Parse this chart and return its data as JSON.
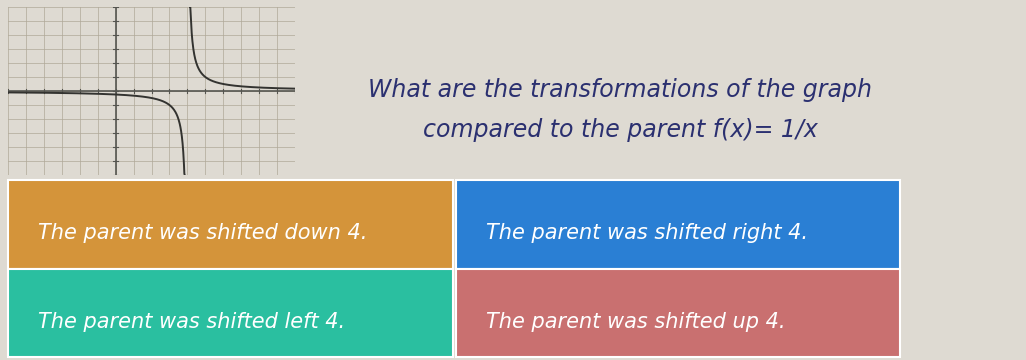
{
  "title_line1": "What are the transformations of the graph",
  "title_line2": "compared to the parent f(x)= 1/x",
  "bg_color": "#dedad2",
  "title_color": "#2b3070",
  "options": [
    {
      "text": "The parent was shifted down 4.",
      "bg": "#d4943a",
      "text_color": "#ffffff",
      "row": 0,
      "col": 0
    },
    {
      "text": "The parent was shifted right 4.",
      "bg": "#2a7fd4",
      "text_color": "#ffffff",
      "row": 0,
      "col": 1
    },
    {
      "text": "The parent was shifted left 4.",
      "bg": "#2abfa0",
      "text_color": "#ffffff",
      "row": 1,
      "col": 0
    },
    {
      "text": "The parent was shifted up 4.",
      "bg": "#c97070",
      "text_color": "#ffffff",
      "row": 1,
      "col": 1
    }
  ],
  "title_fontsize": 17,
  "option_fontsize": 15,
  "graph_bg": "#dedad2",
  "grid_color": "#b0a898",
  "axis_color": "#555550",
  "curve_color": "#333330"
}
